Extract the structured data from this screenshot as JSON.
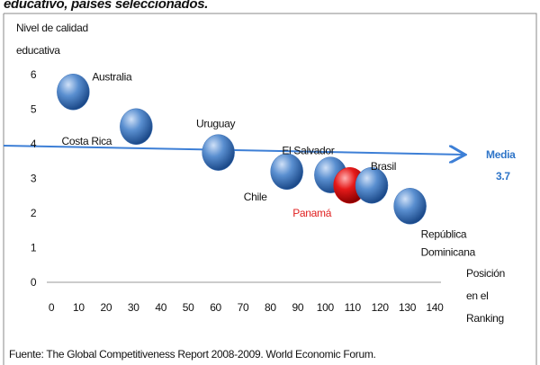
{
  "chart_data": {
    "type": "scatter",
    "title": "educativo, países seleccionados.",
    "y_label": [
      "Nivel de calidad",
      "educativa"
    ],
    "x_label": [
      "Posición",
      "en el",
      "Ranking"
    ],
    "labels": [
      "Australia",
      "Costa Rica",
      "Uruguay",
      "Chile",
      "El Salvador",
      "Panamá",
      "Brasil",
      [
        "República",
        "Dominicana"
      ]
    ],
    "x": [
      8,
      31,
      61,
      86,
      102,
      109,
      117,
      131
    ],
    "values": [
      5.5,
      4.5,
      3.75,
      3.2,
      3.1,
      2.8,
      2.8,
      2.2
    ],
    "colors": [
      "#3a6fb5",
      "#3a6fb5",
      "#3a6fb5",
      "#3a6fb5",
      "#3a6fb5",
      "#e01010",
      "#3a6fb5",
      "#3a6fb5"
    ],
    "label_colors": [
      "#111111",
      "#111111",
      "#111111",
      "#111111",
      "#111111",
      "#e02020",
      "#111111",
      "#111111"
    ],
    "xlim": [
      0,
      140
    ],
    "xticks": [
      0,
      10,
      20,
      30,
      40,
      50,
      60,
      70,
      80,
      90,
      100,
      110,
      120,
      130,
      140
    ],
    "ylim": [
      0,
      6
    ],
    "yticks": [
      0,
      1,
      2,
      3,
      4,
      5,
      6
    ],
    "annotations": {
      "mean_name": "Media",
      "mean_value": "3.7"
    },
    "source": "Fuente: The Global Competitiveness Report 2008-2009. World Economic Forum."
  }
}
